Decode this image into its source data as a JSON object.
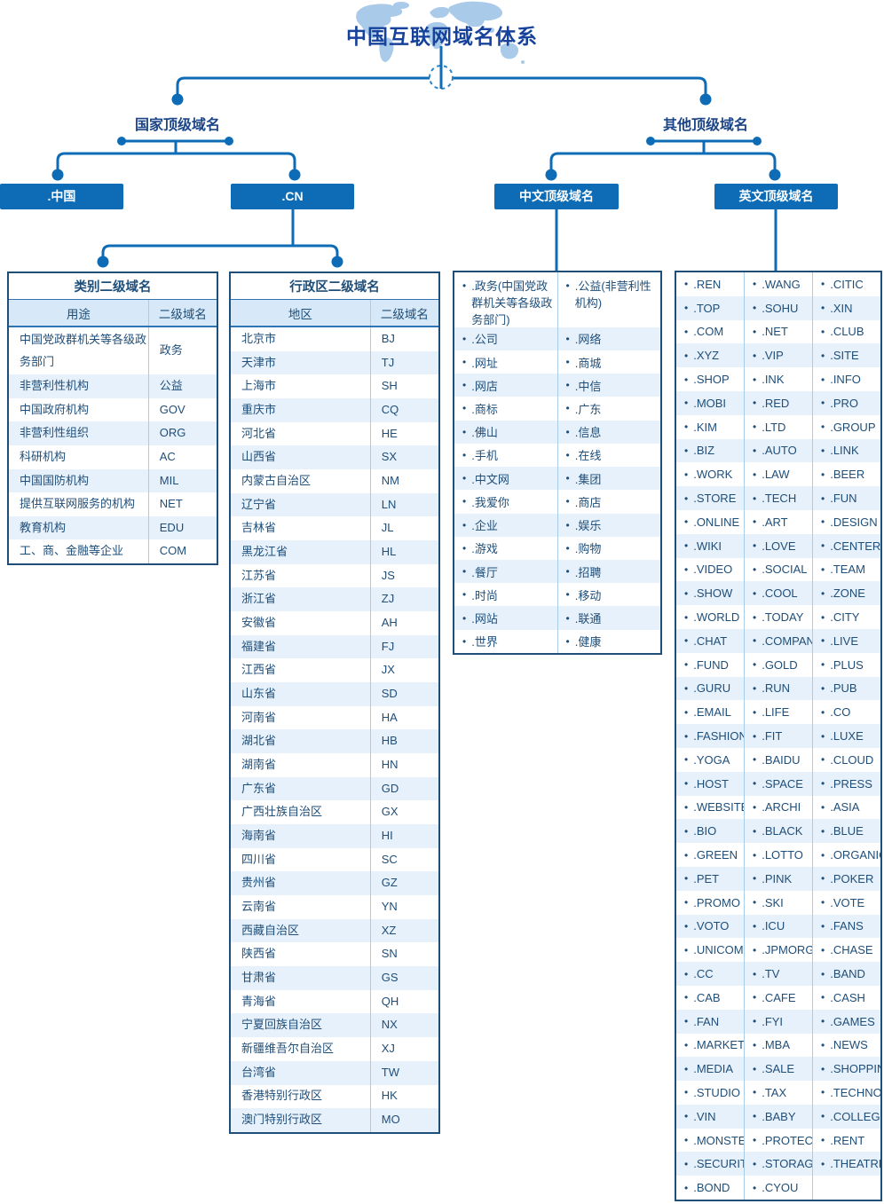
{
  "title": "中国互联网域名体系",
  "colors": {
    "accent_blue": "#0d6cb5",
    "title_text": "#17429b",
    "label_text": "#1c4587",
    "cell_text": "#1f4e79",
    "stripe": "#e7f1fb",
    "header_bg": "#d7e9f8",
    "border_dark": "#1f4e79",
    "divider_light": "#a9cde9",
    "map_blue": "#a9cbe9"
  },
  "branches": {
    "left_label": "国家顶级域名",
    "right_label": "其他顶级域名"
  },
  "nodes": {
    "china": ".中国",
    "cn": ".CN",
    "chinese_tld": "中文顶级域名",
    "english_tld": "英文顶级域名"
  },
  "category_table": {
    "title": "类别二级域名",
    "headers": [
      "用途",
      "二级域名"
    ],
    "rows": [
      [
        "中国党政群机关等各级政务部门",
        "政务"
      ],
      [
        "非营利性机构",
        "公益"
      ],
      [
        "中国政府机构",
        "GOV"
      ],
      [
        "非营利性组织",
        "ORG"
      ],
      [
        "科研机构",
        "AC"
      ],
      [
        "中国国防机构",
        "MIL"
      ],
      [
        "提供互联网服务的机构",
        "NET"
      ],
      [
        "教育机构",
        "EDU"
      ],
      [
        "工、商、金融等企业",
        "COM"
      ]
    ]
  },
  "admin_table": {
    "title": "行政区二级域名",
    "headers": [
      "地区",
      "二级域名"
    ],
    "rows": [
      [
        "北京市",
        "BJ"
      ],
      [
        "天津市",
        "TJ"
      ],
      [
        "上海市",
        "SH"
      ],
      [
        "重庆市",
        "CQ"
      ],
      [
        "河北省",
        "HE"
      ],
      [
        "山西省",
        "SX"
      ],
      [
        "内蒙古自治区",
        "NM"
      ],
      [
        "辽宁省",
        "LN"
      ],
      [
        "吉林省",
        "JL"
      ],
      [
        "黑龙江省",
        "HL"
      ],
      [
        "江苏省",
        "JS"
      ],
      [
        "浙江省",
        "ZJ"
      ],
      [
        "安徽省",
        "AH"
      ],
      [
        "福建省",
        "FJ"
      ],
      [
        "江西省",
        "JX"
      ],
      [
        "山东省",
        "SD"
      ],
      [
        "河南省",
        "HA"
      ],
      [
        "湖北省",
        "HB"
      ],
      [
        "湖南省",
        "HN"
      ],
      [
        "广东省",
        "GD"
      ],
      [
        "广西壮族自治区",
        "GX"
      ],
      [
        "海南省",
        "HI"
      ],
      [
        "四川省",
        "SC"
      ],
      [
        "贵州省",
        "GZ"
      ],
      [
        "云南省",
        "YN"
      ],
      [
        "西藏自治区",
        "XZ"
      ],
      [
        "陕西省",
        "SN"
      ],
      [
        "甘肃省",
        "GS"
      ],
      [
        "青海省",
        "QH"
      ],
      [
        "宁夏回族自治区",
        "NX"
      ],
      [
        "新疆维吾尔自治区",
        "XJ"
      ],
      [
        "台湾省",
        "TW"
      ],
      [
        "香港特别行政区",
        "HK"
      ],
      [
        "澳门特别行政区",
        "MO"
      ]
    ]
  },
  "chinese_list": {
    "col1": [
      ".政务(中国党政群机关等各级政务部门)",
      ".公司",
      ".网址",
      ".网店",
      ".商标",
      ".佛山",
      ".手机",
      ".中文网",
      ".我爱你",
      ".企业",
      ".游戏",
      ".餐厅",
      ".时尚",
      ".网站",
      ".世界"
    ],
    "col2": [
      ".公益(非营利性机构)",
      ".网络",
      ".商城",
      ".中信",
      ".广东",
      ".信息",
      ".在线",
      ".集团",
      ".商店",
      ".娱乐",
      ".购物",
      ".招聘",
      ".移动",
      ".联通",
      ".健康"
    ]
  },
  "english_list": {
    "col1": [
      ".REN",
      ".TOP",
      ".COM",
      ".XYZ",
      ".SHOP",
      ".MOBI",
      ".KIM",
      ".BIZ",
      ".WORK",
      ".STORE",
      ".ONLINE",
      ".WIKI",
      ".VIDEO",
      ".SHOW",
      ".WORLD",
      ".CHAT",
      ".FUND",
      ".GURU",
      ".EMAIL",
      ".FASHION",
      ".YOGA",
      ".HOST",
      ".WEBSITE",
      ".BIO",
      ".GREEN",
      ".PET",
      ".PROMO",
      ".VOTO",
      ".UNICOM",
      ".CC",
      ".CAB",
      ".FAN",
      ".MARKET",
      ".MEDIA",
      ".STUDIO",
      ".VIN",
      ".MONSTER",
      ".SECURITY",
      ".BOND"
    ],
    "col2": [
      ".WANG",
      ".SOHU",
      ".NET",
      ".VIP",
      ".INK",
      ".RED",
      ".LTD",
      ".AUTO",
      ".LAW",
      ".TECH",
      ".ART",
      ".LOVE",
      ".SOCIAL",
      ".COOL",
      ".TODAY",
      ".COMPANY",
      ".GOLD",
      ".RUN",
      ".LIFE",
      ".FIT",
      ".BAIDU",
      ".SPACE",
      ".ARCHI",
      ".BLACK",
      ".LOTTO",
      ".PINK",
      ".SKI",
      ".ICU",
      ".JPMORGAN",
      ".TV",
      ".CAFE",
      ".FYI",
      ".MBA",
      ".SALE",
      ".TAX",
      ".BABY",
      ".PROTECTION",
      ".STORAGE",
      ".CYOU"
    ],
    "col3": [
      ".CITIC",
      ".XIN",
      ".CLUB",
      ".SITE",
      ".INFO",
      ".PRO",
      ".GROUP",
      ".LINK",
      ".BEER",
      ".FUN",
      ".DESIGN",
      ".CENTER",
      ".TEAM",
      ".ZONE",
      ".CITY",
      ".LIVE",
      ".PLUS",
      ".PUB",
      ".CO",
      ".LUXE",
      ".CLOUD",
      ".PRESS",
      ".ASIA",
      ".BLUE",
      ".ORGANIC",
      ".POKER",
      ".VOTE",
      ".FANS",
      ".CHASE",
      ".BAND",
      ".CASH",
      ".GAMES",
      ".NEWS",
      ".SHOPPING",
      ".TECHNOLOGY",
      ".COLLEGE",
      ".RENT",
      ".THEATRE",
      ""
    ]
  }
}
